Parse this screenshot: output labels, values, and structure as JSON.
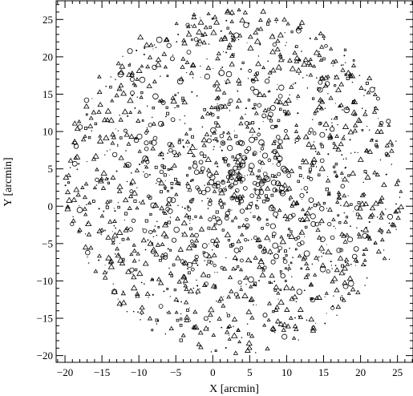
{
  "chart_data": {
    "type": "scatter",
    "title": "",
    "xlabel": "X [arcmin]",
    "ylabel": "Y [arcmin]",
    "xlim": [
      -21.2,
      27.1
    ],
    "ylim": [
      -20.9,
      27.5
    ],
    "xticks": [
      -20,
      -15,
      -10,
      -5,
      0,
      5,
      10,
      15,
      20,
      25
    ],
    "yticks": [
      -20,
      -15,
      -10,
      -5,
      0,
      5,
      10,
      15,
      20,
      25
    ],
    "xtick_labels": [
      "−20",
      "−15",
      "−10",
      "−5",
      "0",
      "5",
      "10",
      "15",
      "20",
      "25"
    ],
    "ytick_labels": [
      "−20",
      "−15",
      "−10",
      "−5",
      "0",
      "5",
      "10",
      "15",
      "20",
      "25"
    ],
    "grid": false,
    "legend": "none",
    "field": {
      "center": [
        3,
        3.5
      ],
      "radius": 23
    },
    "series": [
      {
        "marker": "triangle",
        "points": [
          [
            -19.5,
            4.1
          ],
          [
            -18.2,
            1.5
          ],
          [
            -18,
            -3.2
          ],
          [
            -17.5,
            8.9
          ],
          [
            -16.5,
            -5.6
          ],
          [
            -16.1,
            6.3
          ],
          [
            -15.4,
            12.6
          ],
          [
            -14.8,
            2.4
          ],
          [
            -14.6,
            -8.9
          ],
          [
            -13.9,
            -2.1
          ],
          [
            -13.4,
            9.2
          ],
          [
            -13,
            14.8
          ],
          [
            -12.1,
            -11.7
          ],
          [
            -11.8,
            5.4
          ],
          [
            -11.1,
            1.3
          ],
          [
            -10.9,
            17.8
          ],
          [
            -10.6,
            -6
          ],
          [
            -10.1,
            11.4
          ],
          [
            -9.6,
            -14.2
          ],
          [
            -8.5,
            19.9
          ],
          [
            -8.1,
            7.7
          ],
          [
            -7.3,
            -9.8
          ],
          [
            -6.9,
            14.1
          ],
          [
            -6.2,
            22.3
          ],
          [
            -5.6,
            -16.4
          ],
          [
            -4.8,
            3.1
          ],
          [
            -4.1,
            18.6
          ],
          [
            -3.6,
            -12.9
          ],
          [
            -2.5,
            24.1
          ],
          [
            -1.9,
            -18.5
          ],
          [
            -0.8,
            9.6
          ],
          [
            0.3,
            25.3
          ],
          [
            0.9,
            -15.1
          ],
          [
            2.2,
            21.2
          ],
          [
            3.1,
            -19.7
          ],
          [
            4.4,
            25.9
          ],
          [
            5.3,
            -17.4
          ],
          [
            6.5,
            23.7
          ],
          [
            7.4,
            -19.1
          ],
          [
            8.8,
            22.1
          ],
          [
            9.6,
            -16.6
          ],
          [
            11.1,
            20.5
          ],
          [
            11.9,
            -14.9
          ],
          [
            13.2,
            18.9
          ],
          [
            14.1,
            -12.3
          ],
          [
            15.3,
            16.1
          ],
          [
            16.2,
            -10.1
          ],
          [
            17.4,
            13.5
          ],
          [
            18.1,
            -7.2
          ],
          [
            19.3,
            10.8
          ],
          [
            19.9,
            -4.1
          ],
          [
            20.8,
            7.4
          ],
          [
            21.6,
            -1.2
          ],
          [
            22.3,
            4.2
          ],
          [
            22.9,
            1.1
          ],
          [
            23.8,
            -3.4
          ],
          [
            24.9,
            2.9
          ],
          [
            25.1,
            -1.6
          ],
          [
            23.6,
            8.1
          ],
          [
            21.9,
            12.6
          ],
          [
            20.1,
            15.8
          ],
          [
            17.6,
            18.2
          ],
          [
            -6.8,
            -6.6
          ],
          [
            -2.8,
            -3.9
          ],
          [
            1.6,
            -8.4
          ],
          [
            6.1,
            -4.6
          ],
          [
            12.3,
            -7.1
          ],
          [
            15.6,
            3.4
          ],
          [
            11.6,
            9.2
          ],
          [
            7.1,
            12.8
          ],
          [
            0.6,
            14.4
          ],
          [
            -3.4,
            8.6
          ]
        ]
      },
      {
        "marker": "circle",
        "points": [
          [
            -11.1,
            -3.1
          ],
          [
            -9.2,
            -3.3
          ],
          [
            -9,
            4.1
          ],
          [
            -8.1,
            -6.1
          ],
          [
            -7.3,
            3.5
          ],
          [
            -6.1,
            -0.4
          ],
          [
            -5.2,
            7.2
          ],
          [
            -4.1,
            -7.4
          ],
          [
            -3.3,
            2.6
          ],
          [
            -2.2,
            -3.9
          ],
          [
            -1.6,
            5.9
          ],
          [
            -0.4,
            0.3
          ],
          [
            0.4,
            -5.1
          ],
          [
            0.7,
            3.1
          ],
          [
            1.2,
            9.4
          ],
          [
            1.6,
            2.2
          ],
          [
            1.9,
            -1.6
          ],
          [
            2.1,
            3.9
          ],
          [
            2.4,
            2.6
          ],
          [
            2.6,
            1.1
          ],
          [
            2.9,
            4.4
          ],
          [
            3.1,
            3.1
          ],
          [
            3.3,
            2.1
          ],
          [
            3.6,
            5.4
          ],
          [
            3.9,
            0.7
          ],
          [
            4.1,
            3.6
          ],
          [
            4.4,
            2.4
          ],
          [
            4.7,
            -2.6
          ],
          [
            5.1,
            4.9
          ],
          [
            5.3,
            1.4
          ],
          [
            5.7,
            7.1
          ],
          [
            6.1,
            2.9
          ],
          [
            6.4,
            -5.4
          ],
          [
            7.1,
            4.3
          ],
          [
            7.4,
            0.9
          ],
          [
            8.1,
            10.6
          ],
          [
            8.3,
            -3.7
          ],
          [
            8.9,
            5.6
          ],
          [
            9.4,
            1.9
          ],
          [
            9.8,
            -7.4
          ],
          [
            10.3,
            4.1
          ],
          [
            10.9,
            -1.2
          ],
          [
            11.4,
            8.9
          ],
          [
            12.1,
            -4.9
          ],
          [
            12.6,
            2.4
          ],
          [
            13.3,
            10.2
          ],
          [
            14.1,
            -2.4
          ],
          [
            14.8,
            6.1
          ],
          [
            9.1,
            -5.6
          ],
          [
            11.7,
            -5.1
          ],
          [
            6.9,
            -6.1
          ],
          [
            6.3,
            13.5
          ],
          [
            4.6,
            11.1
          ],
          [
            -0.9,
            -10.4
          ],
          [
            3.2,
            -11.8
          ],
          [
            -5.4,
            11.6
          ],
          [
            16.2,
            -4.2
          ],
          [
            -7.8,
            9.1
          ]
        ]
      },
      {
        "marker": "square",
        "points": [
          [
            -14.1,
            3.1
          ],
          [
            -12.1,
            -7.1
          ],
          [
            -10.4,
            9.1
          ],
          [
            -8.4,
            -1.1
          ],
          [
            -6.2,
            13.2
          ],
          [
            -5.1,
            -11.2
          ],
          [
            -3.1,
            5.1
          ],
          [
            -1.2,
            -6.2
          ],
          [
            0.2,
            16.1
          ],
          [
            1.4,
            -3.2
          ],
          [
            2.7,
            6.6
          ],
          [
            3.4,
            -8.1
          ],
          [
            4.9,
            14.2
          ],
          [
            5.6,
            -1.4
          ],
          [
            6.8,
            8.2
          ],
          [
            7.7,
            -10.2
          ],
          [
            8.6,
            2.1
          ],
          [
            9.9,
            12.3
          ],
          [
            10.6,
            -3.4
          ],
          [
            11.8,
            5.2
          ],
          [
            12.9,
            -9.2
          ],
          [
            13.6,
            14.4
          ],
          [
            15.1,
            0.4
          ],
          [
            16.4,
            8.4
          ],
          [
            17.2,
            -2.2
          ],
          [
            18.4,
            4.1
          ],
          [
            -9.6,
            15.2
          ],
          [
            -4.3,
            -15.1
          ],
          [
            4.1,
            19.2
          ],
          [
            8.2,
            -14.1
          ]
        ]
      },
      {
        "marker": "dot",
        "points": [
          [
            -17.1,
            0.2
          ],
          [
            -16.4,
            10.1
          ],
          [
            -15.1,
            -3.8
          ],
          [
            -14.3,
            7.4
          ],
          [
            -13.2,
            -6.4
          ],
          [
            -12.6,
            12.2
          ],
          [
            -11.6,
            3.3
          ],
          [
            -10.8,
            -9.1
          ],
          [
            -10.2,
            14.6
          ],
          [
            -9.4,
            0.8
          ],
          [
            -8.7,
            -12.2
          ],
          [
            -8.2,
            11.9
          ],
          [
            -7.6,
            -3.9
          ],
          [
            -7.1,
            17.4
          ],
          [
            -6.6,
            5.1
          ],
          [
            -5.9,
            -8.3
          ],
          [
            -5.4,
            20.2
          ],
          [
            -4.7,
            0.1
          ],
          [
            -4.3,
            -14.4
          ],
          [
            -3.8,
            12.1
          ],
          [
            -3.1,
            -1.9
          ],
          [
            -2.7,
            17.2
          ],
          [
            -2.2,
            -9.9
          ],
          [
            -1.7,
            21.5
          ],
          [
            -1.1,
            2.8
          ],
          [
            -0.6,
            -16.3
          ],
          [
            0.1,
            7.6
          ],
          [
            0.5,
            -12.7
          ],
          [
            1.1,
            18.4
          ],
          [
            1.8,
            -6.9
          ],
          [
            2.3,
            12.8
          ],
          [
            2.8,
            -16.1
          ],
          [
            3.5,
            22.3
          ],
          [
            4.2,
            -9.8
          ],
          [
            4.8,
            17.1
          ],
          [
            5.5,
            -13.2
          ],
          [
            6.2,
            20.1
          ],
          [
            6.9,
            -7.8
          ],
          [
            7.5,
            15.3
          ],
          [
            8.4,
            -16.9
          ],
          [
            9.2,
            18.2
          ],
          [
            9.7,
            -11.2
          ],
          [
            10.4,
            14.9
          ],
          [
            11.3,
            -12.8
          ],
          [
            12.2,
            17.2
          ],
          [
            12.8,
            -1.1
          ],
          [
            13.5,
            11.6
          ],
          [
            14.3,
            -7.3
          ],
          [
            15.2,
            13.1
          ],
          [
            16.1,
            -6.4
          ],
          [
            16.9,
            10.9
          ],
          [
            17.8,
            -0.9
          ],
          [
            18.7,
            7.1
          ],
          [
            19.5,
            -2.9
          ],
          [
            20.4,
            3.2
          ],
          [
            21.2,
            10.2
          ],
          [
            21.9,
            -5.1
          ],
          [
            22.7,
            6.2
          ],
          [
            23.4,
            -0.4
          ],
          [
            24.2,
            5.6
          ],
          [
            -18.6,
            6.6
          ],
          [
            -18.9,
            -1.4
          ],
          [
            -16.8,
            -7.6
          ],
          [
            -15.6,
            15.1
          ],
          [
            -13.8,
            17.3
          ],
          [
            -12.4,
            -13.4
          ],
          [
            -11.2,
            19.1
          ],
          [
            -9.8,
            -15.2
          ],
          [
            -7.9,
            21.6
          ],
          [
            -6.4,
            -17.1
          ],
          [
            -2.9,
            24.2
          ],
          [
            -0.2,
            -19.5
          ],
          [
            2.6,
            25.6
          ],
          [
            5.8,
            -19.6
          ],
          [
            8.6,
            24.6
          ],
          [
            11.6,
            -17.9
          ],
          [
            14.4,
            20.7
          ],
          [
            16.8,
            -14.6
          ],
          [
            18.9,
            16.6
          ],
          [
            20.6,
            -10.6
          ],
          [
            22.4,
            12.9
          ],
          [
            23.9,
            -7.1
          ],
          [
            24.8,
            8.7
          ],
          [
            25.3,
            1.2
          ]
        ]
      }
    ]
  }
}
